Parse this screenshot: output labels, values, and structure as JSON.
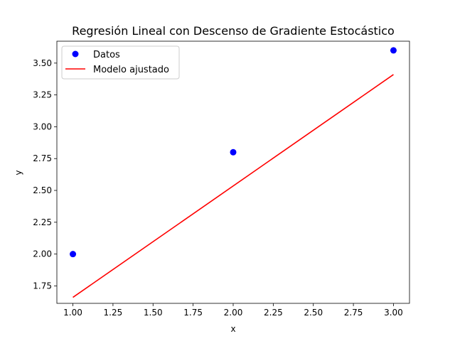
{
  "chart_data": {
    "type": "scatter",
    "title": "Regresión Lineal con Descenso de Gradiente Estocástico",
    "xlabel": "x",
    "ylabel": "y",
    "xlim": [
      0.9,
      3.1
    ],
    "ylim": [
      1.613,
      3.672
    ],
    "xticks": [
      1.0,
      1.25,
      1.5,
      1.75,
      2.0,
      2.25,
      2.5,
      2.75,
      3.0
    ],
    "yticks": [
      1.75,
      2.0,
      2.25,
      2.5,
      2.75,
      3.0,
      3.25,
      3.5
    ],
    "xtick_labels": [
      "1.00",
      "1.25",
      "1.50",
      "1.75",
      "2.00",
      "2.25",
      "2.50",
      "2.75",
      "3.00"
    ],
    "ytick_labels": [
      "1.75",
      "2.00",
      "2.25",
      "2.50",
      "2.75",
      "3.00",
      "3.25",
      "3.50"
    ],
    "grid": false,
    "legend_position": "upper-left",
    "series": [
      {
        "name": "Datos",
        "kind": "scatter",
        "color": "#0000ff",
        "points": [
          {
            "x": 1.0,
            "y": 2.0
          },
          {
            "x": 2.0,
            "y": 2.8
          },
          {
            "x": 3.0,
            "y": 3.6
          }
        ]
      },
      {
        "name": "Modelo ajustado",
        "kind": "line",
        "color": "#ff0000",
        "points": [
          {
            "x": 1.0,
            "y": 1.66
          },
          {
            "x": 3.0,
            "y": 3.41
          }
        ]
      }
    ]
  }
}
